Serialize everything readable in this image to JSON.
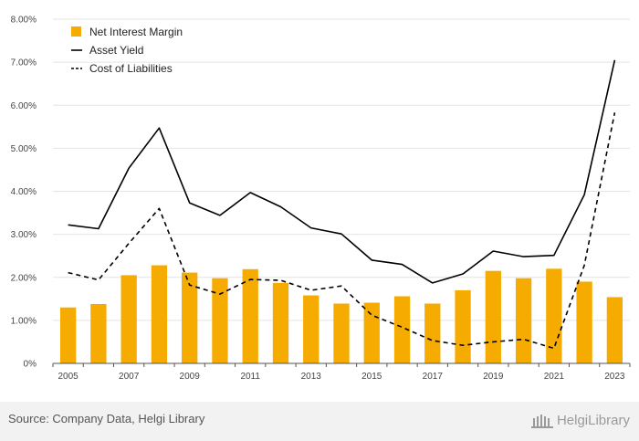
{
  "chart_data": {
    "type": "bar",
    "x": [
      2005,
      2006,
      2007,
      2008,
      2009,
      2010,
      2011,
      2012,
      2013,
      2014,
      2015,
      2016,
      2017,
      2018,
      2019,
      2020,
      2021,
      2022,
      2023
    ],
    "x_tick_labels": [
      "2005",
      "2007",
      "2009",
      "2011",
      "2013",
      "2015",
      "2017",
      "2019",
      "2021",
      "2023"
    ],
    "y_tick_labels": [
      "0%",
      "1.00%",
      "2.00%",
      "3.00%",
      "4.00%",
      "5.00%",
      "6.00%",
      "7.00%",
      "8.00%"
    ],
    "ylim": [
      0,
      8
    ],
    "grid": true,
    "legend_position": "top-left",
    "series": [
      {
        "name": "Net Interest Margin",
        "type": "bar",
        "color": "#f5ab00",
        "values": [
          1.3,
          1.38,
          2.05,
          2.28,
          2.11,
          1.98,
          2.19,
          1.87,
          1.58,
          1.39,
          1.41,
          1.56,
          1.39,
          1.7,
          2.15,
          1.98,
          2.2,
          1.9,
          1.54
        ]
      },
      {
        "name": "Asset Yield",
        "type": "line",
        "style": "solid",
        "color": "#000000",
        "values": [
          3.22,
          3.13,
          4.54,
          5.47,
          3.73,
          3.44,
          3.97,
          3.64,
          3.15,
          3.01,
          2.4,
          2.3,
          1.87,
          2.08,
          2.61,
          2.48,
          2.51,
          3.92,
          7.05
        ]
      },
      {
        "name": "Cost of Liabilities",
        "type": "line",
        "style": "dashed",
        "color": "#000000",
        "values": [
          2.11,
          1.94,
          2.79,
          3.6,
          1.82,
          1.61,
          1.95,
          1.93,
          1.7,
          1.8,
          1.12,
          0.84,
          0.53,
          0.42,
          0.5,
          0.56,
          0.35,
          2.28,
          5.83
        ]
      }
    ]
  },
  "footer": {
    "source": "Source: Company Data, Helgi Library",
    "logo_text": "HelgiLibrary"
  }
}
